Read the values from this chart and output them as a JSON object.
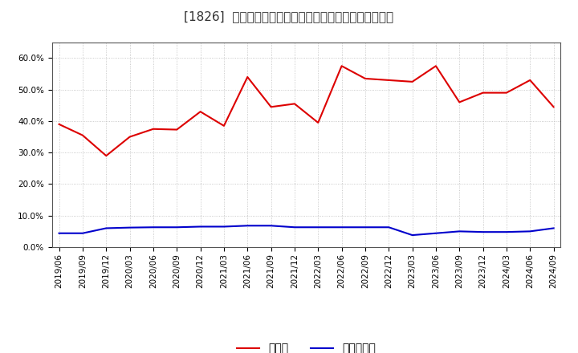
{
  "title": "[1826]  現預金、有利子負債の総資産に対する比率の推移",
  "x_labels": [
    "2019/06",
    "2019/09",
    "2019/12",
    "2020/03",
    "2020/06",
    "2020/09",
    "2020/12",
    "2021/03",
    "2021/06",
    "2021/09",
    "2021/12",
    "2022/03",
    "2022/06",
    "2022/09",
    "2022/12",
    "2023/03",
    "2023/06",
    "2023/09",
    "2023/12",
    "2024/03",
    "2024/06",
    "2024/09"
  ],
  "cash": [
    0.39,
    0.355,
    0.29,
    0.35,
    0.375,
    0.373,
    0.43,
    0.385,
    0.54,
    0.445,
    0.455,
    0.395,
    0.575,
    0.535,
    0.53,
    0.525,
    0.575,
    0.46,
    0.49,
    0.49,
    0.53,
    0.445
  ],
  "debt": [
    0.044,
    0.044,
    0.06,
    0.062,
    0.063,
    0.063,
    0.065,
    0.065,
    0.068,
    0.068,
    0.063,
    0.063,
    0.063,
    0.063,
    0.063,
    0.038,
    0.044,
    0.05,
    0.048,
    0.048,
    0.05,
    0.06
  ],
  "cash_color": "#dd0000",
  "debt_color": "#0000cc",
  "ylim": [
    0.0,
    0.65
  ],
  "yticks": [
    0.0,
    0.1,
    0.2,
    0.3,
    0.4,
    0.5,
    0.6
  ],
  "background_color": "#ffffff",
  "grid_color": "#bbbbbb",
  "legend_cash": "現預金",
  "legend_debt": "有利子負債",
  "title_fontsize": 11,
  "axis_fontsize": 7.5,
  "legend_fontsize": 10
}
